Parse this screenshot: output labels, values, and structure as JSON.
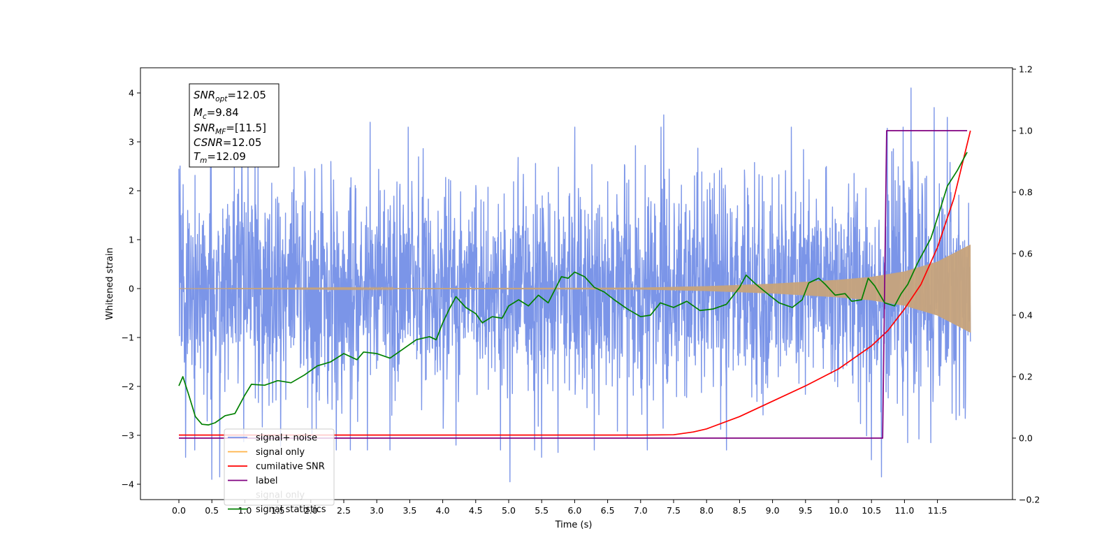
{
  "chart_data": {
    "type": "line",
    "title": "",
    "xlabel": "Time (s)",
    "ylabel": "Whitened strain",
    "xlim": [
      -0.6,
      12.6
    ],
    "ylim": [
      -4.35,
      4.5
    ],
    "y2lim": [
      -0.2,
      1.2
    ],
    "x_ticks": [
      "0.0",
      "0.5",
      "1.0",
      "1.5",
      "2.0",
      "2.5",
      "3.0",
      "3.5",
      "4.0",
      "4.5",
      "5.0",
      "5.5",
      "6.0",
      "6.5",
      "7.0",
      "7.5",
      "8.0",
      "8.5",
      "9.0",
      "9.5",
      "10.0",
      "10.5",
      "11.0",
      "11.5"
    ],
    "y_ticks": [
      "4",
      "3",
      "2",
      "1",
      "0",
      "−1",
      "−2",
      "−3",
      "−4"
    ],
    "y2_ticks": [
      "1.2",
      "1.0",
      "0.8",
      "0.6",
      "0.4",
      "0.2",
      "0.0",
      "−0.2"
    ],
    "grid": false,
    "legend_position": "lower-left",
    "legend": [
      "signal+ noise",
      "signal only",
      "cumilative SNR",
      "label",
      "signal only",
      "signal statistics"
    ],
    "stats_box": {
      "snr_opt": {
        "base": "SNR",
        "sub": "opt",
        "value": "=12.05"
      },
      "mc": {
        "base": "M",
        "sub": "c",
        "value": "=9.84"
      },
      "snr_mf": {
        "base": "SNR",
        "sub": "MF",
        "value": "=[11.5]"
      },
      "csnr": {
        "base": "CSNR",
        "value": "=12.05"
      },
      "tm": {
        "base": "T",
        "sub": "m",
        "value": "=12.09"
      }
    },
    "series": [
      {
        "name": "signal+ noise",
        "axis": "left",
        "color": "#7b95e8",
        "style": "noise",
        "x_range": [
          0.0,
          12.0
        ],
        "noise_std": 1.1,
        "spikes": [
          [
            0.0,
            2.45
          ],
          [
            0.1,
            -3.45
          ],
          [
            0.5,
            -3.9
          ],
          [
            0.62,
            -3.85
          ],
          [
            1.05,
            2.6
          ],
          [
            1.2,
            2.6
          ],
          [
            2.02,
            -3.05
          ],
          [
            2.6,
            -3.3
          ],
          [
            2.9,
            3.4
          ],
          [
            3.2,
            -3.3
          ],
          [
            4.2,
            -3.2
          ],
          [
            5.02,
            -3.95
          ],
          [
            5.5,
            -3.45
          ],
          [
            5.75,
            -3.35
          ],
          [
            6.0,
            3.3
          ],
          [
            6.3,
            -3.3
          ],
          [
            7.35,
            3.55
          ],
          [
            7.1,
            -3.3
          ],
          [
            8.3,
            -3.3
          ],
          [
            10.5,
            -3.5
          ],
          [
            10.65,
            -3.85
          ],
          [
            11.1,
            4.1
          ],
          [
            11.45,
            3.7
          ],
          [
            11.65,
            3.5
          ],
          [
            11.05,
            -3.15
          ],
          [
            11.4,
            -3.15
          ]
        ]
      },
      {
        "name": "signal only",
        "axis": "left",
        "color": "#c7a37b",
        "style": "chirp",
        "x_range": [
          0.0,
          12.0
        ],
        "amplitude": [
          [
            0.0,
            0.0
          ],
          [
            7.0,
            0.02
          ],
          [
            8.0,
            0.05
          ],
          [
            9.0,
            0.1
          ],
          [
            10.0,
            0.18
          ],
          [
            10.5,
            0.24
          ],
          [
            11.0,
            0.35
          ],
          [
            11.5,
            0.55
          ],
          [
            12.0,
            0.9
          ]
        ]
      },
      {
        "name": "cumilative SNR",
        "axis": "right",
        "color": "#ff0000",
        "style": "line",
        "points": [
          [
            0.0,
            0.01
          ],
          [
            7.0,
            0.01
          ],
          [
            7.5,
            0.011
          ],
          [
            7.8,
            0.02
          ],
          [
            8.0,
            0.03
          ],
          [
            8.5,
            0.07
          ],
          [
            9.0,
            0.12
          ],
          [
            9.5,
            0.17
          ],
          [
            10.0,
            0.225
          ],
          [
            10.5,
            0.3
          ],
          [
            10.75,
            0.35
          ],
          [
            11.0,
            0.42
          ],
          [
            11.25,
            0.5
          ],
          [
            11.5,
            0.62
          ],
          [
            11.75,
            0.78
          ],
          [
            12.0,
            1.0
          ]
        ]
      },
      {
        "name": "label",
        "axis": "right",
        "color": "#800080",
        "style": "line",
        "points": [
          [
            0.0,
            0.0
          ],
          [
            10.67,
            0.0
          ],
          [
            10.73,
            1.0
          ],
          [
            11.95,
            1.0
          ]
        ]
      },
      {
        "name": "signal statistics",
        "axis": "right",
        "color": "#008000",
        "style": "line",
        "points": [
          [
            0.0,
            0.17
          ],
          [
            0.06,
            0.2
          ],
          [
            0.15,
            0.14
          ],
          [
            0.25,
            0.07
          ],
          [
            0.35,
            0.045
          ],
          [
            0.45,
            0.043
          ],
          [
            0.55,
            0.05
          ],
          [
            0.7,
            0.073
          ],
          [
            0.85,
            0.08
          ],
          [
            1.0,
            0.14
          ],
          [
            1.1,
            0.175
          ],
          [
            1.3,
            0.172
          ],
          [
            1.5,
            0.187
          ],
          [
            1.7,
            0.18
          ],
          [
            1.9,
            0.205
          ],
          [
            2.1,
            0.235
          ],
          [
            2.3,
            0.248
          ],
          [
            2.5,
            0.275
          ],
          [
            2.7,
            0.255
          ],
          [
            2.8,
            0.28
          ],
          [
            3.0,
            0.275
          ],
          [
            3.2,
            0.26
          ],
          [
            3.4,
            0.29
          ],
          [
            3.6,
            0.32
          ],
          [
            3.8,
            0.33
          ],
          [
            3.9,
            0.32
          ],
          [
            4.0,
            0.375
          ],
          [
            4.1,
            0.42
          ],
          [
            4.2,
            0.46
          ],
          [
            4.35,
            0.425
          ],
          [
            4.5,
            0.405
          ],
          [
            4.6,
            0.375
          ],
          [
            4.75,
            0.395
          ],
          [
            4.9,
            0.39
          ],
          [
            5.0,
            0.43
          ],
          [
            5.15,
            0.45
          ],
          [
            5.3,
            0.43
          ],
          [
            5.45,
            0.465
          ],
          [
            5.6,
            0.44
          ],
          [
            5.8,
            0.525
          ],
          [
            5.9,
            0.52
          ],
          [
            6.0,
            0.54
          ],
          [
            6.15,
            0.525
          ],
          [
            6.3,
            0.49
          ],
          [
            6.45,
            0.475
          ],
          [
            6.6,
            0.45
          ],
          [
            6.8,
            0.42
          ],
          [
            7.0,
            0.395
          ],
          [
            7.15,
            0.4
          ],
          [
            7.3,
            0.44
          ],
          [
            7.5,
            0.425
          ],
          [
            7.7,
            0.445
          ],
          [
            7.9,
            0.415
          ],
          [
            8.1,
            0.42
          ],
          [
            8.3,
            0.435
          ],
          [
            8.5,
            0.49
          ],
          [
            8.6,
            0.53
          ],
          [
            8.75,
            0.5
          ],
          [
            8.95,
            0.465
          ],
          [
            9.1,
            0.44
          ],
          [
            9.3,
            0.425
          ],
          [
            9.45,
            0.45
          ],
          [
            9.55,
            0.505
          ],
          [
            9.7,
            0.52
          ],
          [
            9.8,
            0.5
          ],
          [
            9.95,
            0.465
          ],
          [
            10.1,
            0.47
          ],
          [
            10.2,
            0.445
          ],
          [
            10.35,
            0.45
          ],
          [
            10.45,
            0.52
          ],
          [
            10.55,
            0.495
          ],
          [
            10.7,
            0.44
          ],
          [
            10.85,
            0.43
          ],
          [
            10.95,
            0.47
          ],
          [
            11.05,
            0.5
          ],
          [
            11.2,
            0.57
          ],
          [
            11.4,
            0.65
          ],
          [
            11.55,
            0.75
          ],
          [
            11.65,
            0.82
          ],
          [
            11.8,
            0.87
          ],
          [
            11.95,
            0.93
          ]
        ]
      }
    ]
  }
}
